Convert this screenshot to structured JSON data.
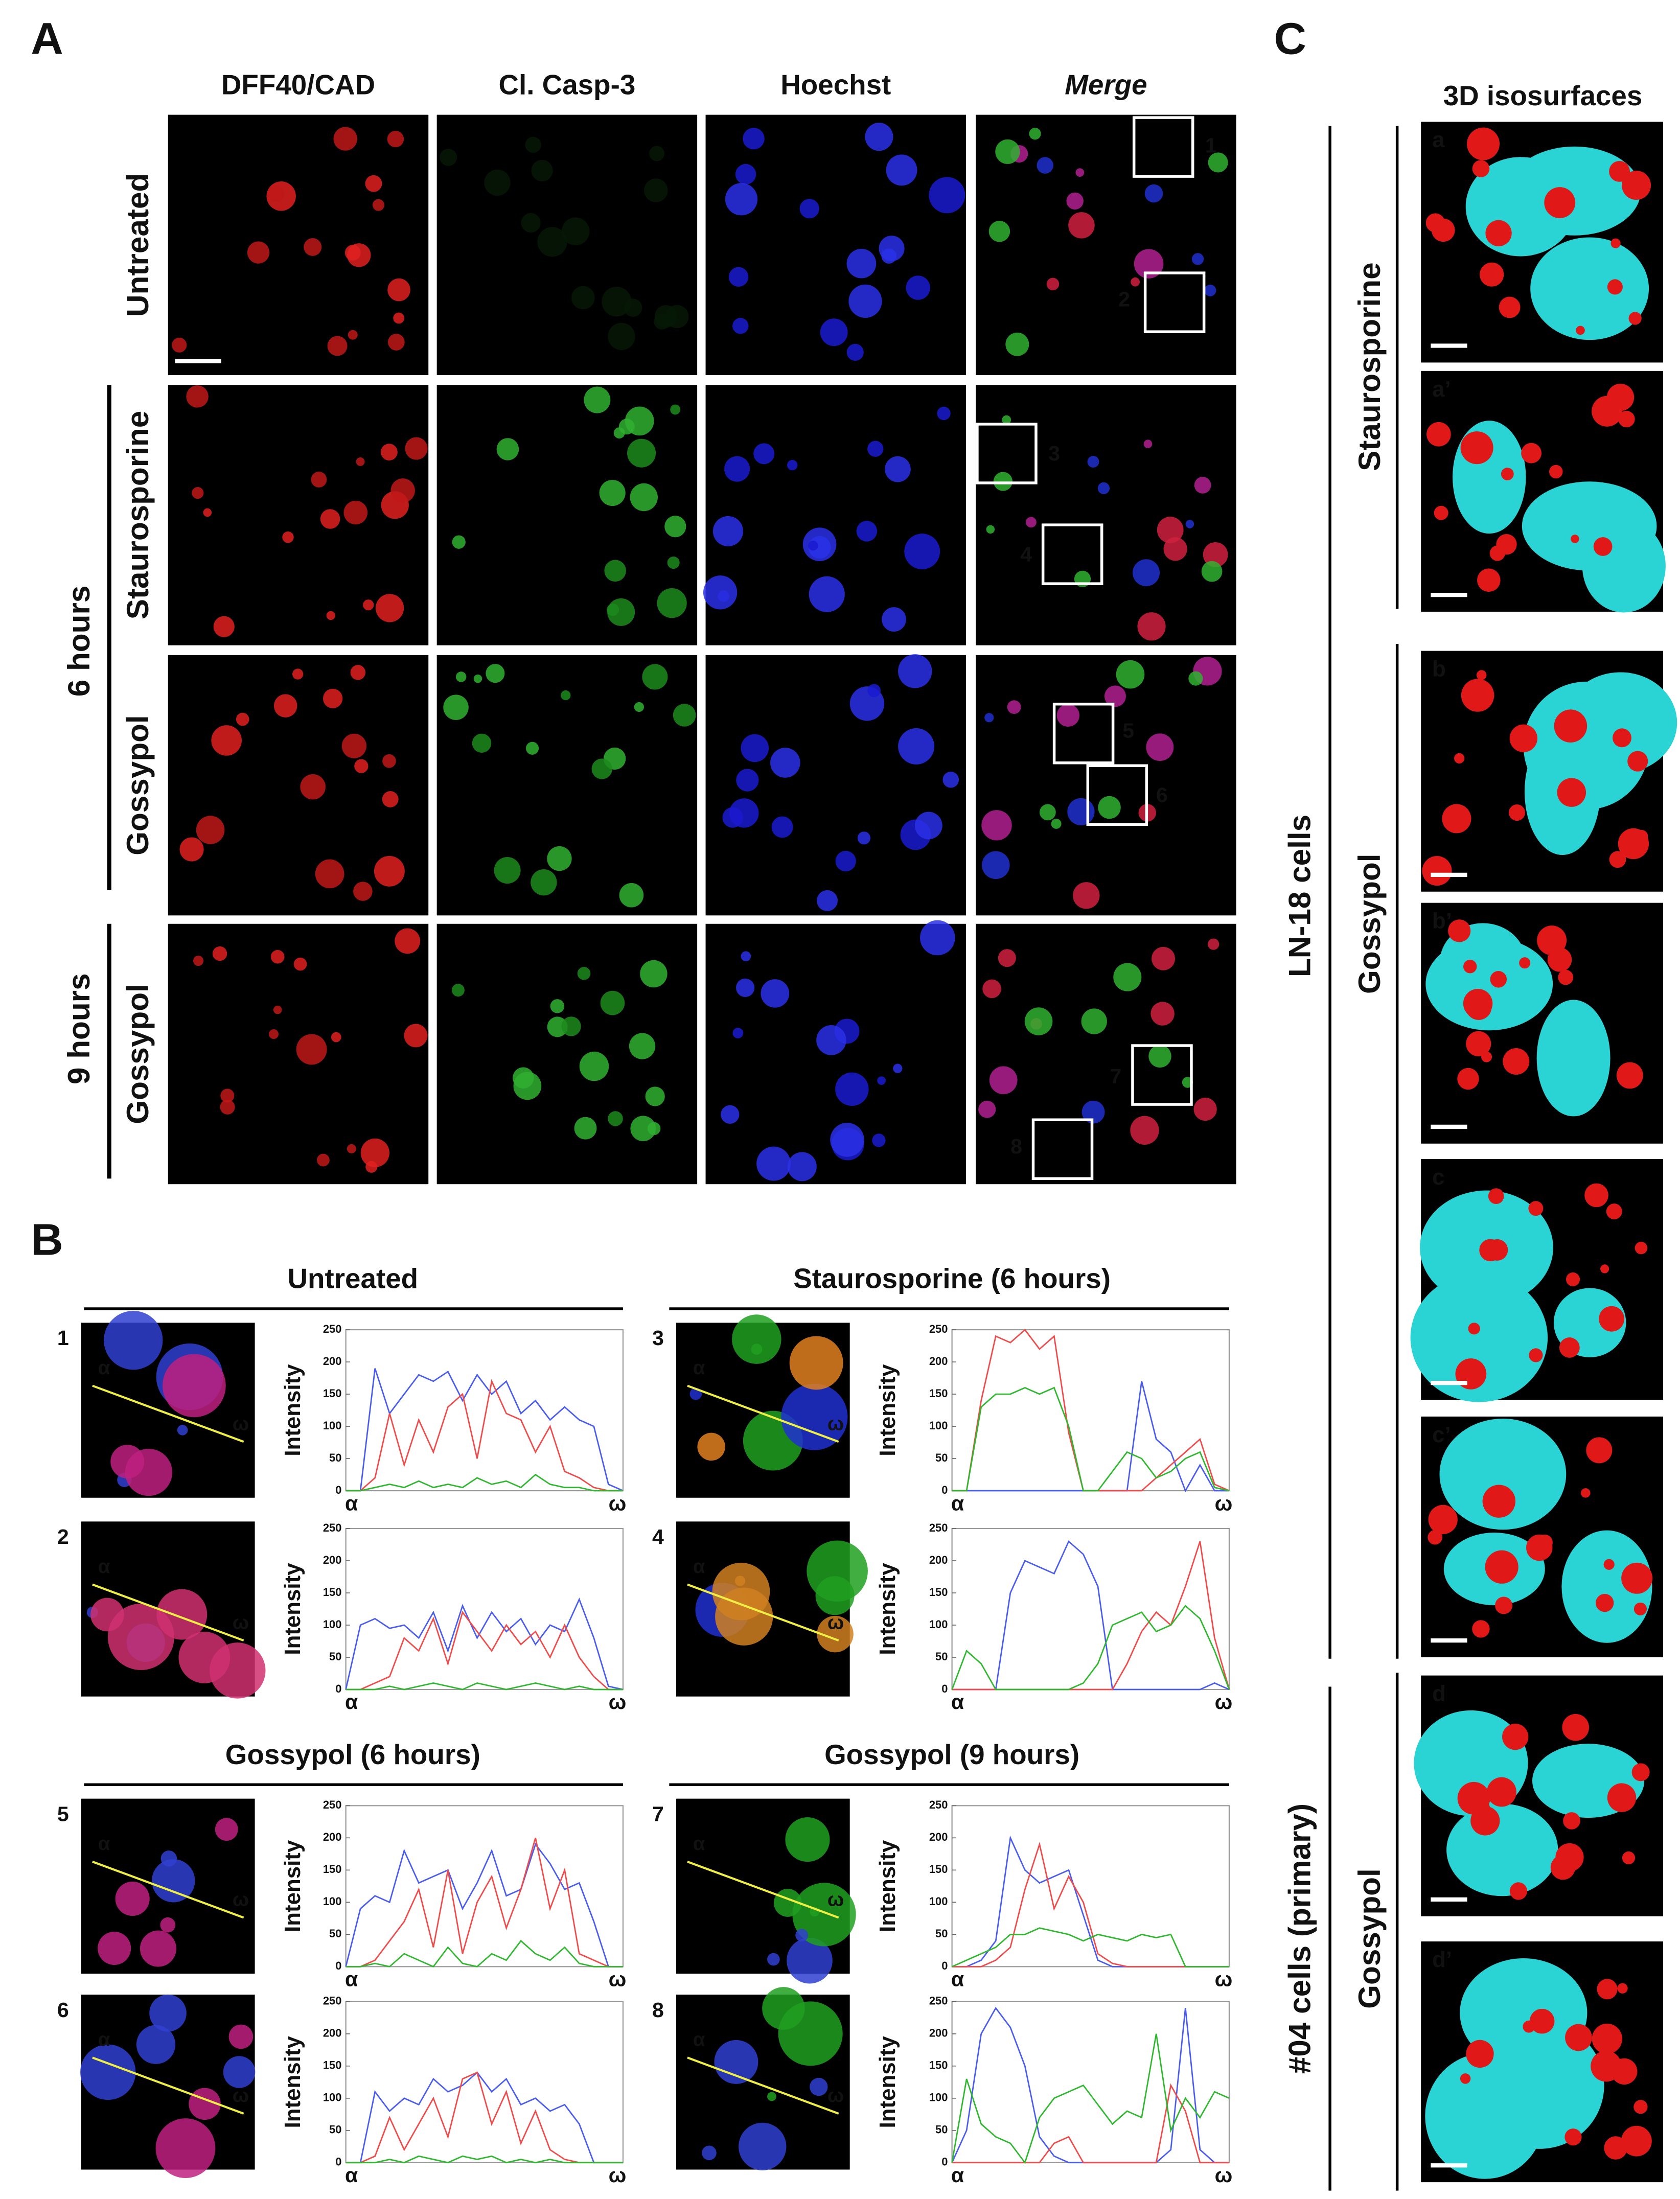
{
  "panel_a": {
    "label": "A",
    "columns": [
      "DFF40/CAD",
      "Cl. Casp-3",
      "Hoechst",
      "Merge"
    ],
    "rows": [
      "Untreated",
      "Staurosporine",
      "Gossypol",
      "Gossypol"
    ],
    "groups": [
      "6 hours",
      "9 hours"
    ],
    "boxes": [
      "1",
      "2",
      "3",
      "4",
      "5",
      "6",
      "7",
      "8"
    ]
  },
  "panel_b": {
    "label": "B",
    "titles": [
      "Untreated",
      "Staurosporine (6 hours)",
      "Gossypol (6 hours)",
      "Gossypol (9 hours)"
    ],
    "y_label": "Intensity",
    "start_label": "α",
    "end_label": "ω",
    "ylim": [
      0,
      250
    ],
    "yticks": [
      0,
      50,
      100,
      150,
      200,
      250
    ],
    "plots": [
      {
        "number": "1",
        "series": [
          {
            "color": "#4a5cf0",
            "values": [
              0,
              0,
              190,
              120,
              150,
              180,
              170,
              185,
              140,
              180,
              150,
              170,
              120,
              140,
              110,
              130,
              110,
              100,
              10,
              0
            ]
          },
          {
            "color": "#f04a4a",
            "values": [
              0,
              0,
              20,
              120,
              40,
              110,
              60,
              130,
              150,
              50,
              170,
              120,
              110,
              60,
              100,
              30,
              20,
              5,
              0,
              0
            ]
          },
          {
            "color": "#2fb82f",
            "values": [
              0,
              0,
              5,
              10,
              5,
              15,
              5,
              10,
              5,
              20,
              10,
              15,
              5,
              25,
              10,
              5,
              5,
              0,
              0,
              0
            ]
          }
        ]
      },
      {
        "number": "2",
        "series": [
          {
            "color": "#4a5cf0",
            "values": [
              0,
              100,
              110,
              95,
              100,
              80,
              120,
              60,
              130,
              80,
              120,
              90,
              110,
              70,
              100,
              90,
              140,
              80,
              5,
              0
            ]
          },
          {
            "color": "#f04a4a",
            "values": [
              0,
              0,
              10,
              20,
              80,
              60,
              110,
              40,
              120,
              90,
              60,
              100,
              70,
              90,
              50,
              100,
              50,
              20,
              0,
              0
            ]
          },
          {
            "color": "#2fb82f",
            "values": [
              0,
              0,
              0,
              5,
              0,
              5,
              10,
              5,
              0,
              10,
              5,
              0,
              5,
              10,
              5,
              0,
              5,
              0,
              0,
              0
            ]
          }
        ]
      },
      {
        "number": "3",
        "series": [
          {
            "color": "#4a5cf0",
            "values": [
              0,
              0,
              0,
              0,
              0,
              0,
              0,
              0,
              0,
              0,
              0,
              0,
              0,
              170,
              80,
              60,
              0,
              40,
              0,
              0
            ]
          },
          {
            "color": "#f04a4a",
            "values": [
              0,
              0,
              140,
              240,
              230,
              250,
              220,
              240,
              90,
              0,
              0,
              0,
              0,
              0,
              20,
              40,
              60,
              80,
              10,
              0
            ]
          },
          {
            "color": "#2fb82f",
            "values": [
              0,
              0,
              130,
              150,
              150,
              160,
              150,
              160,
              100,
              0,
              0,
              30,
              60,
              50,
              20,
              30,
              50,
              60,
              5,
              0
            ]
          }
        ]
      },
      {
        "number": "4",
        "series": [
          {
            "color": "#4a5cf0",
            "values": [
              0,
              0,
              0,
              0,
              150,
              200,
              190,
              180,
              230,
              210,
              160,
              0,
              0,
              0,
              0,
              0,
              0,
              0,
              10,
              0
            ]
          },
          {
            "color": "#f04a4a",
            "values": [
              0,
              0,
              0,
              0,
              0,
              0,
              0,
              0,
              0,
              0,
              0,
              0,
              40,
              90,
              120,
              100,
              160,
              230,
              80,
              0
            ]
          },
          {
            "color": "#2fb82f",
            "values": [
              0,
              60,
              40,
              0,
              0,
              0,
              0,
              0,
              0,
              10,
              40,
              100,
              110,
              120,
              90,
              100,
              130,
              110,
              60,
              0
            ]
          }
        ]
      },
      {
        "number": "5",
        "series": [
          {
            "color": "#4a5cf0",
            "values": [
              0,
              90,
              110,
              100,
              180,
              130,
              140,
              150,
              90,
              130,
              180,
              110,
              120,
              190,
              160,
              120,
              130,
              70,
              0,
              0
            ]
          },
          {
            "color": "#f04a4a",
            "values": [
              0,
              0,
              10,
              40,
              70,
              120,
              30,
              150,
              20,
              100,
              140,
              60,
              120,
              200,
              90,
              150,
              20,
              10,
              0,
              0
            ]
          },
          {
            "color": "#2fb82f",
            "values": [
              0,
              0,
              5,
              0,
              20,
              10,
              0,
              30,
              5,
              0,
              20,
              10,
              40,
              20,
              10,
              30,
              5,
              0,
              0,
              0
            ]
          }
        ]
      },
      {
        "number": "6",
        "series": [
          {
            "color": "#4a5cf0",
            "values": [
              0,
              0,
              110,
              80,
              100,
              90,
              130,
              110,
              120,
              140,
              110,
              130,
              90,
              100,
              80,
              90,
              60,
              0,
              0,
              0
            ]
          },
          {
            "color": "#f04a4a",
            "values": [
              0,
              0,
              10,
              70,
              20,
              60,
              100,
              40,
              130,
              140,
              60,
              110,
              30,
              80,
              20,
              5,
              0,
              0,
              0,
              0
            ]
          },
          {
            "color": "#2fb82f",
            "values": [
              0,
              0,
              0,
              5,
              0,
              10,
              5,
              0,
              10,
              5,
              10,
              0,
              5,
              0,
              5,
              0,
              0,
              0,
              0,
              0
            ]
          }
        ]
      },
      {
        "number": "7",
        "series": [
          {
            "color": "#4a5cf0",
            "values": [
              0,
              0,
              10,
              40,
              200,
              150,
              130,
              140,
              150,
              80,
              10,
              0,
              0,
              0,
              0,
              0,
              0,
              0,
              0,
              0
            ]
          },
          {
            "color": "#f04a4a",
            "values": [
              0,
              0,
              0,
              10,
              30,
              120,
              190,
              90,
              140,
              100,
              20,
              5,
              0,
              0,
              0,
              0,
              0,
              0,
              0,
              0
            ]
          },
          {
            "color": "#2fb82f",
            "values": [
              0,
              10,
              20,
              30,
              50,
              50,
              60,
              55,
              50,
              40,
              50,
              45,
              40,
              50,
              45,
              50,
              0,
              0,
              0,
              0
            ]
          }
        ]
      },
      {
        "number": "8",
        "series": [
          {
            "color": "#4a5cf0",
            "values": [
              0,
              50,
              200,
              240,
              210,
              150,
              40,
              10,
              0,
              0,
              0,
              0,
              0,
              0,
              0,
              20,
              240,
              20,
              0,
              0
            ]
          },
          {
            "color": "#f04a4a",
            "values": [
              0,
              0,
              0,
              0,
              0,
              0,
              0,
              30,
              40,
              0,
              0,
              0,
              0,
              0,
              0,
              120,
              80,
              0,
              0,
              0
            ]
          },
          {
            "color": "#2fb82f",
            "values": [
              0,
              130,
              60,
              40,
              30,
              0,
              70,
              100,
              110,
              120,
              90,
              60,
              80,
              70,
              200,
              50,
              100,
              70,
              110,
              100
            ]
          }
        ]
      }
    ]
  },
  "panel_c": {
    "label": "C",
    "title": "3D isosurfaces",
    "cells": [
      "LN-18 cells",
      "#04 cells (primary)"
    ],
    "treatments": [
      "Staurosporine",
      "Gossypol",
      "Gossypol"
    ],
    "images": [
      "a",
      "a’",
      "b",
      "b’",
      "c",
      "c’",
      "d",
      "d’"
    ]
  }
}
